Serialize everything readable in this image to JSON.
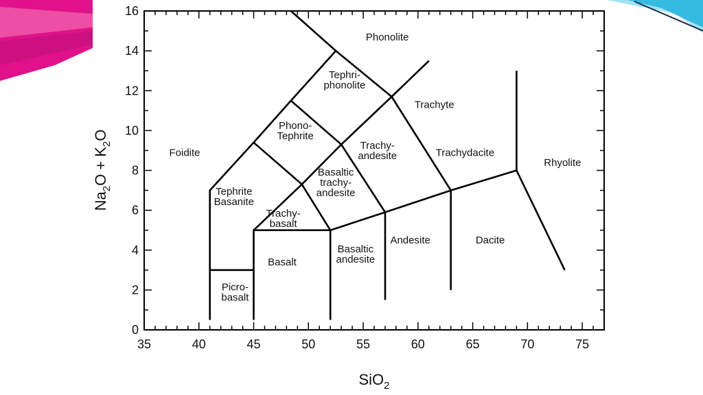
{
  "colors": {
    "background": "#ffffff",
    "line": "#000000",
    "deco_magenta": "#e0118a",
    "deco_pink": "#ef5fa9",
    "deco_cyan": "#29b6e0",
    "deco_light_cyan": "#9fe3f3"
  },
  "diagram": {
    "x_axis": {
      "label_main": "SiO",
      "label_sub": "2",
      "range": [
        35,
        77
      ],
      "ticks": [
        "35",
        "40",
        "45",
        "50",
        "55",
        "60",
        "65",
        "70",
        "75"
      ]
    },
    "y_axis": {
      "label_parts": [
        "Na",
        "2",
        "O + K",
        "2",
        "O"
      ],
      "range": [
        0,
        16
      ],
      "ticks": [
        "0",
        "2",
        "4",
        "6",
        "8",
        "10",
        "12",
        "14",
        "16"
      ]
    },
    "fields": [
      {
        "id": "phonolite",
        "lines": [
          "Phonolite"
        ],
        "x": 57.2,
        "y": 14.7
      },
      {
        "id": "tephriphonolite",
        "lines": [
          "Tephri-",
          "phonolite"
        ],
        "x": 53.3,
        "y": 12.55
      },
      {
        "id": "trachyte",
        "lines": [
          "Trachyte"
        ],
        "x": 61.5,
        "y": 11.3
      },
      {
        "id": "foidite",
        "lines": [
          "Foidite"
        ],
        "x": 38.7,
        "y": 8.9
      },
      {
        "id": "phonotephrite",
        "lines": [
          "Phono-",
          "Tephrite"
        ],
        "x": 48.8,
        "y": 10.0
      },
      {
        "id": "trachyandesite",
        "lines": [
          "Trachy-",
          "andesite"
        ],
        "x": 56.3,
        "y": 9.0
      },
      {
        "id": "trachydacite",
        "lines": [
          "Trachydacite"
        ],
        "x": 64.3,
        "y": 8.9
      },
      {
        "id": "rhyolite",
        "lines": [
          "Rhyolite"
        ],
        "x": 73.2,
        "y": 8.4
      },
      {
        "id": "tephrite-basanite",
        "lines": [
          "Tephrite",
          "Basanite"
        ],
        "x": 43.2,
        "y": 6.7
      },
      {
        "id": "basaltic-trachyandesite",
        "lines": [
          "Basaltic",
          "trachy-",
          "andesite"
        ],
        "x": 52.5,
        "y": 7.4
      },
      {
        "id": "trachybasalt",
        "lines": [
          "Trachy-",
          "basalt"
        ],
        "x": 47.7,
        "y": 5.6
      },
      {
        "id": "andesite",
        "lines": [
          "Andesite"
        ],
        "x": 59.3,
        "y": 4.5
      },
      {
        "id": "dacite",
        "lines": [
          "Dacite"
        ],
        "x": 66.6,
        "y": 4.5
      },
      {
        "id": "basalt",
        "lines": [
          "Basalt"
        ],
        "x": 47.6,
        "y": 3.4
      },
      {
        "id": "basaltic-andesite",
        "lines": [
          "Basaltic",
          "andesite"
        ],
        "x": 54.3,
        "y": 3.8
      },
      {
        "id": "picrobasalt",
        "lines": [
          "Picro-",
          "basalt"
        ],
        "x": 43.3,
        "y": 1.9
      }
    ],
    "boundaries": [
      [
        [
          41,
          0.5
        ],
        [
          41,
          7
        ],
        [
          45,
          9.4
        ],
        [
          48.4,
          11.5
        ],
        [
          52.5,
          14
        ],
        [
          48.4,
          16
        ]
      ],
      [
        [
          41,
          3
        ],
        [
          45,
          3
        ]
      ],
      [
        [
          45,
          0.5
        ],
        [
          45,
          5
        ],
        [
          49.4,
          7.3
        ],
        [
          53,
          9.3
        ],
        [
          57.6,
          11.7
        ],
        [
          61,
          13.5
        ]
      ],
      [
        [
          45,
          5
        ],
        [
          52,
          5
        ],
        [
          57,
          5.9
        ],
        [
          63,
          7
        ],
        [
          69,
          8
        ]
      ],
      [
        [
          52,
          0.5
        ],
        [
          52,
          5
        ]
      ],
      [
        [
          49.4,
          7.3
        ],
        [
          52,
          5
        ]
      ],
      [
        [
          45,
          9.4
        ],
        [
          49.4,
          7.3
        ]
      ],
      [
        [
          48.4,
          11.5
        ],
        [
          53,
          9.3
        ]
      ],
      [
        [
          52.5,
          14
        ],
        [
          57.6,
          11.7
        ]
      ],
      [
        [
          53,
          9.3
        ],
        [
          57,
          5.9
        ]
      ],
      [
        [
          57.6,
          11.7
        ],
        [
          63,
          7
        ]
      ],
      [
        [
          57,
          1.5
        ],
        [
          57,
          5.9
        ]
      ],
      [
        [
          63,
          2
        ],
        [
          63,
          7
        ]
      ],
      [
        [
          69,
          13
        ],
        [
          69,
          8
        ],
        [
          73.4,
          3
        ]
      ]
    ]
  }
}
